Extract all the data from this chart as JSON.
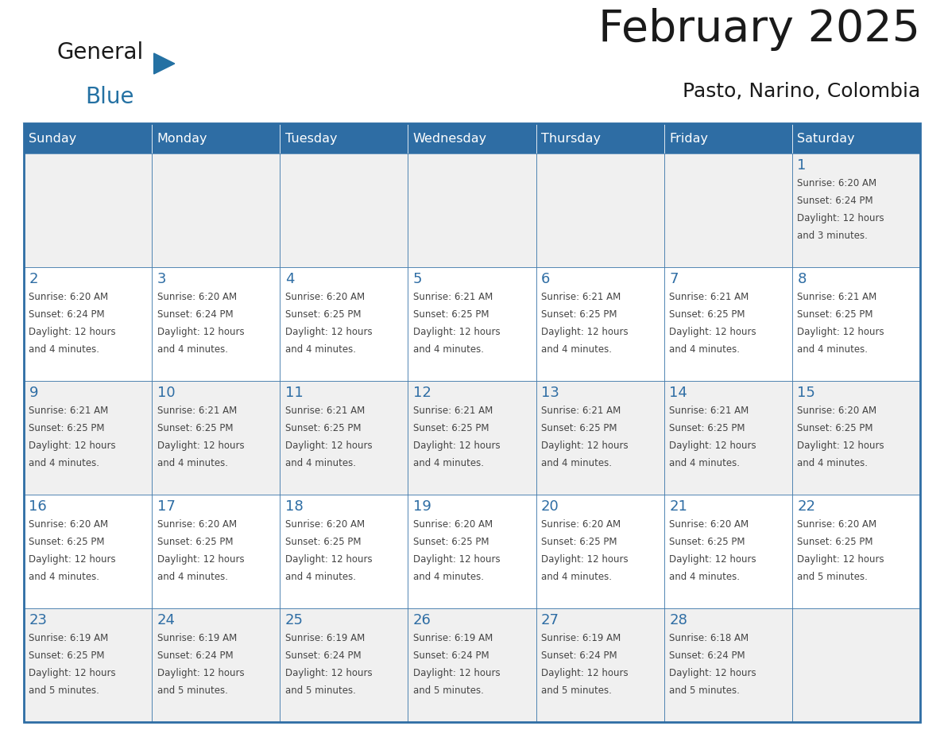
{
  "title": "February 2025",
  "subtitle": "Pasto, Narino, Colombia",
  "header_bg": "#2E6DA4",
  "header_text_color": "#FFFFFF",
  "cell_bg_white": "#FFFFFF",
  "cell_bg_grey": "#F0F0F0",
  "border_color": "#2E6DA4",
  "day_number_color": "#2E6DA4",
  "text_color": "#444444",
  "days_of_week": [
    "Sunday",
    "Monday",
    "Tuesday",
    "Wednesday",
    "Thursday",
    "Friday",
    "Saturday"
  ],
  "calendar_data": [
    [
      {
        "day": "",
        "info": ""
      },
      {
        "day": "",
        "info": ""
      },
      {
        "day": "",
        "info": ""
      },
      {
        "day": "",
        "info": ""
      },
      {
        "day": "",
        "info": ""
      },
      {
        "day": "",
        "info": ""
      },
      {
        "day": "1",
        "info": "Sunrise: 6:20 AM\nSunset: 6:24 PM\nDaylight: 12 hours\nand 3 minutes."
      }
    ],
    [
      {
        "day": "2",
        "info": "Sunrise: 6:20 AM\nSunset: 6:24 PM\nDaylight: 12 hours\nand 4 minutes."
      },
      {
        "day": "3",
        "info": "Sunrise: 6:20 AM\nSunset: 6:24 PM\nDaylight: 12 hours\nand 4 minutes."
      },
      {
        "day": "4",
        "info": "Sunrise: 6:20 AM\nSunset: 6:25 PM\nDaylight: 12 hours\nand 4 minutes."
      },
      {
        "day": "5",
        "info": "Sunrise: 6:21 AM\nSunset: 6:25 PM\nDaylight: 12 hours\nand 4 minutes."
      },
      {
        "day": "6",
        "info": "Sunrise: 6:21 AM\nSunset: 6:25 PM\nDaylight: 12 hours\nand 4 minutes."
      },
      {
        "day": "7",
        "info": "Sunrise: 6:21 AM\nSunset: 6:25 PM\nDaylight: 12 hours\nand 4 minutes."
      },
      {
        "day": "8",
        "info": "Sunrise: 6:21 AM\nSunset: 6:25 PM\nDaylight: 12 hours\nand 4 minutes."
      }
    ],
    [
      {
        "day": "9",
        "info": "Sunrise: 6:21 AM\nSunset: 6:25 PM\nDaylight: 12 hours\nand 4 minutes."
      },
      {
        "day": "10",
        "info": "Sunrise: 6:21 AM\nSunset: 6:25 PM\nDaylight: 12 hours\nand 4 minutes."
      },
      {
        "day": "11",
        "info": "Sunrise: 6:21 AM\nSunset: 6:25 PM\nDaylight: 12 hours\nand 4 minutes."
      },
      {
        "day": "12",
        "info": "Sunrise: 6:21 AM\nSunset: 6:25 PM\nDaylight: 12 hours\nand 4 minutes."
      },
      {
        "day": "13",
        "info": "Sunrise: 6:21 AM\nSunset: 6:25 PM\nDaylight: 12 hours\nand 4 minutes."
      },
      {
        "day": "14",
        "info": "Sunrise: 6:21 AM\nSunset: 6:25 PM\nDaylight: 12 hours\nand 4 minutes."
      },
      {
        "day": "15",
        "info": "Sunrise: 6:20 AM\nSunset: 6:25 PM\nDaylight: 12 hours\nand 4 minutes."
      }
    ],
    [
      {
        "day": "16",
        "info": "Sunrise: 6:20 AM\nSunset: 6:25 PM\nDaylight: 12 hours\nand 4 minutes."
      },
      {
        "day": "17",
        "info": "Sunrise: 6:20 AM\nSunset: 6:25 PM\nDaylight: 12 hours\nand 4 minutes."
      },
      {
        "day": "18",
        "info": "Sunrise: 6:20 AM\nSunset: 6:25 PM\nDaylight: 12 hours\nand 4 minutes."
      },
      {
        "day": "19",
        "info": "Sunrise: 6:20 AM\nSunset: 6:25 PM\nDaylight: 12 hours\nand 4 minutes."
      },
      {
        "day": "20",
        "info": "Sunrise: 6:20 AM\nSunset: 6:25 PM\nDaylight: 12 hours\nand 4 minutes."
      },
      {
        "day": "21",
        "info": "Sunrise: 6:20 AM\nSunset: 6:25 PM\nDaylight: 12 hours\nand 4 minutes."
      },
      {
        "day": "22",
        "info": "Sunrise: 6:20 AM\nSunset: 6:25 PM\nDaylight: 12 hours\nand 5 minutes."
      }
    ],
    [
      {
        "day": "23",
        "info": "Sunrise: 6:19 AM\nSunset: 6:25 PM\nDaylight: 12 hours\nand 5 minutes."
      },
      {
        "day": "24",
        "info": "Sunrise: 6:19 AM\nSunset: 6:24 PM\nDaylight: 12 hours\nand 5 minutes."
      },
      {
        "day": "25",
        "info": "Sunrise: 6:19 AM\nSunset: 6:24 PM\nDaylight: 12 hours\nand 5 minutes."
      },
      {
        "day": "26",
        "info": "Sunrise: 6:19 AM\nSunset: 6:24 PM\nDaylight: 12 hours\nand 5 minutes."
      },
      {
        "day": "27",
        "info": "Sunrise: 6:19 AM\nSunset: 6:24 PM\nDaylight: 12 hours\nand 5 minutes."
      },
      {
        "day": "28",
        "info": "Sunrise: 6:18 AM\nSunset: 6:24 PM\nDaylight: 12 hours\nand 5 minutes."
      },
      {
        "day": "",
        "info": ""
      }
    ]
  ],
  "logo_text1": "General",
  "logo_text2": "Blue",
  "logo_color1": "#1a1a1a",
  "logo_color2": "#2471A3",
  "logo_triangle_color": "#2471A3",
  "title_fontsize": 40,
  "subtitle_fontsize": 18,
  "dow_fontsize": 11.5,
  "day_num_fontsize": 13,
  "info_fontsize": 8.5
}
